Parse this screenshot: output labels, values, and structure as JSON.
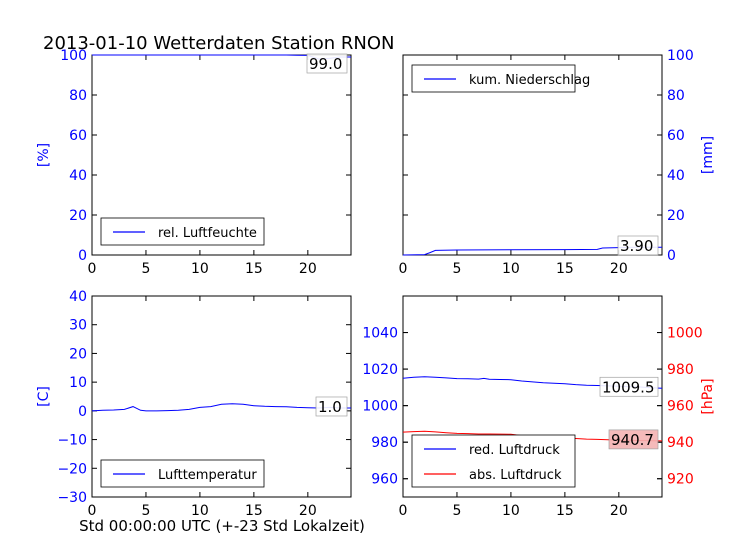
{
  "chart_data": {
    "title": "2013-01-10 Wetterdaten Station RNON",
    "xlabel": "Std 00:00:00 UTC (+-23 Std Lokalzeit)",
    "colors": {
      "blue": "#0000ff",
      "red": "#ff0000",
      "black": "#000000"
    },
    "panels": [
      {
        "id": "humidity",
        "type": "line",
        "xlim": [
          0,
          24
        ],
        "xticks": [
          "0",
          "5",
          "10",
          "15",
          "20"
        ],
        "ylim": [
          0,
          100
        ],
        "yticks": [
          "0",
          "20",
          "40",
          "60",
          "80",
          "100"
        ],
        "ylabel": "[%]",
        "ylabel_side": "left",
        "annotation": "99.0",
        "legend": "bottom-left",
        "series": [
          {
            "name": "rel. Luftfeuchte",
            "color": "#0000ff",
            "x": [
              0,
              2,
              4,
              6,
              8,
              10,
              12,
              14,
              16,
              18,
              19,
              20,
              21,
              22,
              23,
              24
            ],
            "y": [
              100,
              100,
              100,
              100,
              100,
              100,
              100,
              100,
              100,
              100,
              99.9,
              99.8,
              98,
              98.3,
              99,
              99
            ]
          }
        ]
      },
      {
        "id": "precip",
        "type": "line",
        "xlim": [
          0,
          24
        ],
        "xticks": [
          "0",
          "5",
          "10",
          "15",
          "20"
        ],
        "ylim": [
          0,
          100
        ],
        "yticks": [
          "0",
          "20",
          "40",
          "60",
          "80",
          "100"
        ],
        "ylabel": "[mm]",
        "ylabel_side": "right",
        "annotation": "3.90",
        "legend": "top-left",
        "series": [
          {
            "name": "kum. Niederschlag",
            "color": "#0000ff",
            "x": [
              0,
              2,
              2.5,
              3,
              5,
              10,
              15,
              18,
              18.5,
              20,
              22,
              24
            ],
            "y": [
              0,
              0.2,
              1.2,
              2.3,
              2.5,
              2.6,
              2.7,
              2.8,
              3.5,
              3.7,
              3.9,
              3.9
            ]
          }
        ]
      },
      {
        "id": "temperature",
        "type": "line",
        "xlim": [
          0,
          24
        ],
        "xticks": [
          "0",
          "5",
          "10",
          "15",
          "20"
        ],
        "ylim": [
          -30,
          40
        ],
        "yticks": [
          "−30",
          "−20",
          "−10",
          "0",
          "10",
          "20",
          "30",
          "40"
        ],
        "ylabel": "[C]",
        "ylabel_side": "left",
        "annotation": "1.0",
        "legend": "bottom-left",
        "series": [
          {
            "name": "Lufttemperatur",
            "color": "#0000ff",
            "x": [
              0,
              1,
              2,
              3,
              3.8,
              4.5,
              5,
              6,
              7,
              8,
              9,
              10,
              11,
              12,
              13,
              14,
              15,
              16,
              17,
              18,
              19,
              20,
              21,
              22,
              23,
              24
            ],
            "y": [
              0,
              0.2,
              0.3,
              0.5,
              1.5,
              0.2,
              0,
              0,
              0.1,
              0.2,
              0.5,
              1.2,
              1.5,
              2.3,
              2.5,
              2.3,
              1.8,
              1.6,
              1.5,
              1.4,
              1.2,
              1.1,
              1.0,
              1.2,
              1.0,
              1.0
            ]
          }
        ]
      },
      {
        "id": "pressure",
        "type": "line",
        "xlim": [
          0,
          24
        ],
        "xticks": [
          "0",
          "5",
          "10",
          "15",
          "20"
        ],
        "ylim": [
          950,
          1060
        ],
        "yticks": [
          "960",
          "980",
          "1000",
          "1020",
          "1040"
        ],
        "ylim_right": [
          910,
          1020
        ],
        "yticks_right": [
          "920",
          "940",
          "960",
          "980",
          "1000"
        ],
        "ylabel": "[hPa]",
        "ylabel_side": "right",
        "legend": "bottom-left",
        "annotations": [
          {
            "text": "1009.5",
            "series": 0
          },
          {
            "text": "940.7",
            "series": 1
          }
        ],
        "series": [
          {
            "name": "red. Luftdruck",
            "color": "#0000ff",
            "axis": "left",
            "x": [
              0,
              1,
              2,
              3,
              4,
              5,
              6,
              7,
              7.5,
              8,
              9,
              10,
              11,
              12,
              13,
              14,
              15,
              16,
              17,
              18,
              19,
              20,
              21,
              22,
              23,
              24
            ],
            "y": [
              1015,
              1015.5,
              1015.8,
              1015.5,
              1015.2,
              1014.8,
              1014.7,
              1014.5,
              1014.9,
              1014.4,
              1014.3,
              1014.2,
              1013.5,
              1013,
              1012.5,
              1012.3,
              1012,
              1011.5,
              1011.2,
              1011,
              1010.8,
              1010.6,
              1010.4,
              1010.2,
              1009.8,
              1009.5
            ]
          },
          {
            "name": "abs. Luftdruck",
            "color": "#ff0000",
            "axis": "right",
            "x": [
              0,
              1,
              2,
              3,
              4,
              5,
              6,
              7,
              8,
              9,
              10,
              11,
              12,
              13,
              14,
              15,
              16,
              17,
              18,
              19,
              20,
              21,
              22,
              23,
              24
            ],
            "y": [
              945.5,
              945.8,
              946,
              945.6,
              945.2,
              944.8,
              944.7,
              944.5,
              944.5,
              944.4,
              944.3,
              943.6,
              943.1,
              942.7,
              942.5,
              942.3,
              942,
              941.7,
              941.5,
              941.3,
              941.1,
              941,
              940.9,
              940.8,
              940.7
            ]
          }
        ]
      }
    ]
  }
}
